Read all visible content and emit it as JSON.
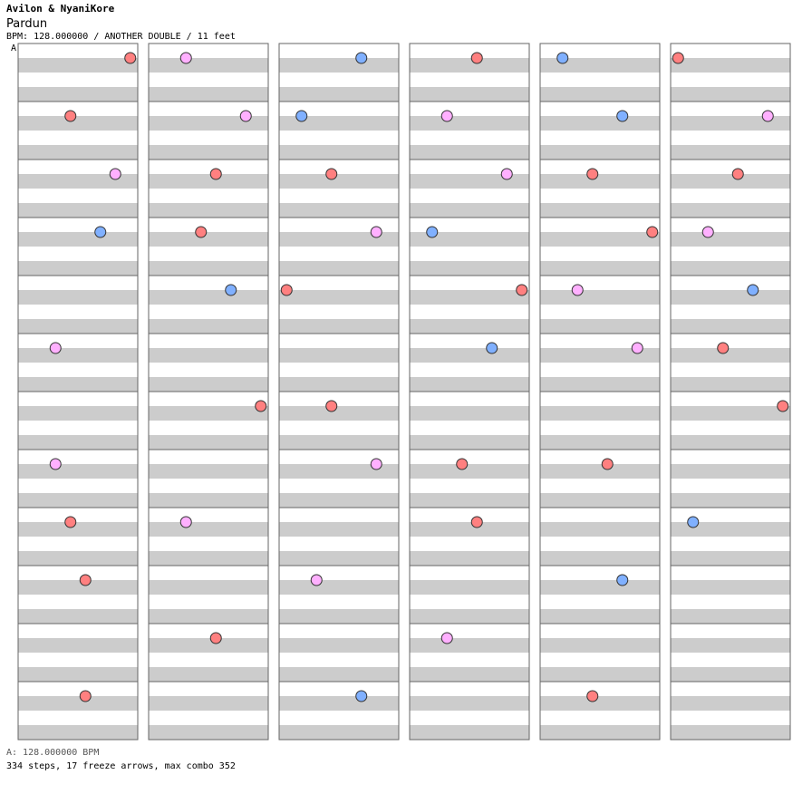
{
  "header": {
    "artist": "Avilon & NyaniKore",
    "title": "Pardun",
    "info": "BPM: 128.000000 / ANOTHER DOUBLE / 11 feet"
  },
  "bpm_marker": "A",
  "footer": {
    "bpm_legend": "A: 128.000000 BPM",
    "stats": "334 steps, 17 freeze arrows, max combo 352"
  },
  "colors": {
    "stripe": "#cccccc",
    "border": "#666666",
    "left_arrow": "#ff8080",
    "down_arrow": "#ff8080",
    "up_arrow": "#80b0ff",
    "right_arrow": "#ff8080",
    "pink_arrow": "#ffb0ff",
    "freeze": "#c0ffc0"
  },
  "chart_data": {
    "type": "table",
    "columns": 6,
    "measures_per_column": 12,
    "lanes": 8,
    "notes": [
      [
        0,
        0,
        7
      ],
      [
        0,
        1,
        3
      ],
      [
        0,
        2,
        6
      ],
      [
        0,
        3,
        5
      ],
      [
        0,
        5,
        2
      ],
      [
        0,
        7,
        2
      ],
      [
        0,
        8,
        3
      ],
      [
        0,
        9,
        4
      ],
      [
        0,
        11,
        4
      ],
      [
        1,
        0,
        2
      ],
      [
        1,
        1,
        6
      ],
      [
        1,
        2,
        4
      ],
      [
        1,
        3,
        3
      ],
      [
        1,
        4,
        5
      ],
      [
        1,
        6,
        7
      ],
      [
        1,
        8,
        2
      ],
      [
        1,
        10,
        4
      ],
      [
        2,
        0,
        5
      ],
      [
        2,
        1,
        1
      ],
      [
        2,
        2,
        3
      ],
      [
        2,
        3,
        6
      ],
      [
        2,
        4,
        0
      ],
      [
        2,
        6,
        3
      ],
      [
        2,
        7,
        6
      ],
      [
        2,
        9,
        2
      ],
      [
        2,
        11,
        5
      ],
      [
        3,
        0,
        4
      ],
      [
        3,
        1,
        2
      ],
      [
        3,
        2,
        6
      ],
      [
        3,
        3,
        1
      ],
      [
        3,
        4,
        7
      ],
      [
        3,
        5,
        5
      ],
      [
        3,
        7,
        3
      ],
      [
        3,
        8,
        4
      ],
      [
        3,
        10,
        2
      ],
      [
        4,
        0,
        1
      ],
      [
        4,
        1,
        5
      ],
      [
        4,
        2,
        3
      ],
      [
        4,
        3,
        7
      ],
      [
        4,
        4,
        2
      ],
      [
        4,
        5,
        6
      ],
      [
        4,
        7,
        4
      ],
      [
        4,
        9,
        5
      ],
      [
        4,
        11,
        3
      ],
      [
        5,
        0,
        0
      ],
      [
        5,
        1,
        6
      ],
      [
        5,
        2,
        4
      ],
      [
        5,
        3,
        2
      ],
      [
        5,
        4,
        5
      ],
      [
        5,
        5,
        3
      ],
      [
        5,
        6,
        7
      ],
      [
        5,
        8,
        1
      ]
    ]
  }
}
